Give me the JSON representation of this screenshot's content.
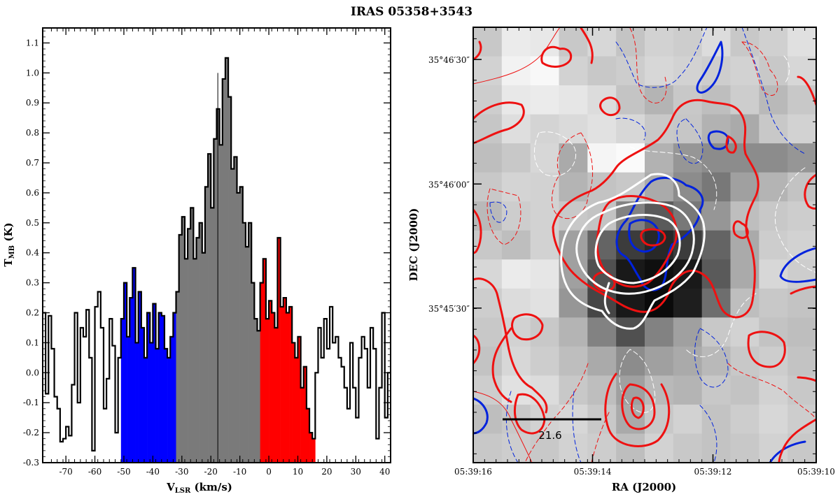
{
  "figure_title": "IRAS 05358+3543",
  "chart_data": [
    {
      "type": "line",
      "subtype": "step-spectrum",
      "xlabel_main": "V",
      "xlabel_sub": "LSR",
      "xlabel_unit": " (km/s)",
      "ylabel_main": "T",
      "ylabel_sub": "MB",
      "ylabel_unit": " (K)",
      "xlim": [
        -78,
        42
      ],
      "ylim": [
        -0.3,
        1.15
      ],
      "xticks": [
        -70,
        -60,
        -50,
        -40,
        -30,
        -20,
        -10,
        0,
        10,
        20,
        30,
        40
      ],
      "yticks": [
        -0.3,
        -0.2,
        -0.1,
        0.0,
        0.1,
        0.2,
        0.3,
        0.4,
        0.5,
        0.6,
        0.7,
        0.8,
        0.9,
        1.0,
        1.1
      ],
      "xtick_labels": [
        "-70",
        "-60",
        "-50",
        "-40",
        "-30",
        "-20",
        "-10",
        "0",
        "10",
        "20",
        "30",
        "40"
      ],
      "ytick_labels": [
        "-0.3",
        "-0.2",
        "-0.1",
        "0.0",
        "0.1",
        "0.2",
        "0.3",
        "0.4",
        "0.5",
        "0.6",
        "0.7",
        "0.8",
        "0.9",
        "1.0",
        "1.1"
      ],
      "systemic_velocity": -17.6,
      "channel_width": 1.0,
      "x": [
        -78,
        -77,
        -76,
        -75,
        -74,
        -73,
        -72,
        -71,
        -70,
        -69,
        -68,
        -67,
        -66,
        -65,
        -64,
        -63,
        -62,
        -61,
        -60,
        -59,
        -58,
        -57,
        -56,
        -55,
        -54,
        -53,
        -52,
        -51,
        -50,
        -49,
        -48,
        -47,
        -46,
        -45,
        -44,
        -43,
        -42,
        -41,
        -40,
        -39,
        -38,
        -37,
        -36,
        -35,
        -34,
        -33,
        -32,
        -31,
        -30,
        -29,
        -28,
        -27,
        -26,
        -25,
        -24,
        -23,
        -22,
        -21,
        -20,
        -19,
        -18,
        -17,
        -16,
        -15,
        -14,
        -13,
        -12,
        -11,
        -10,
        -9,
        -8,
        -7,
        -6,
        -5,
        -4,
        -3,
        -2,
        -1,
        0,
        1,
        2,
        3,
        4,
        5,
        6,
        7,
        8,
        9,
        10,
        11,
        12,
        13,
        14,
        15,
        16,
        17,
        18,
        19,
        20,
        21,
        22,
        23,
        24,
        25,
        26,
        27,
        28,
        29,
        30,
        31,
        32,
        33,
        34,
        35,
        36,
        37,
        38,
        39,
        40,
        41
      ],
      "y": [
        0.2,
        -0.07,
        0.19,
        0.08,
        -0.08,
        -0.12,
        -0.23,
        -0.22,
        -0.18,
        -0.21,
        -0.04,
        0.2,
        -0.1,
        0.15,
        0.12,
        0.21,
        0.05,
        -0.26,
        0.22,
        0.27,
        0.15,
        -0.12,
        -0.02,
        0.18,
        0.09,
        -0.2,
        0.05,
        0.18,
        0.3,
        0.12,
        0.25,
        0.35,
        0.1,
        0.27,
        0.15,
        0.05,
        0.2,
        0.1,
        0.23,
        0.08,
        0.2,
        0.19,
        0.08,
        0.05,
        0.12,
        0.2,
        0.27,
        0.46,
        0.52,
        0.38,
        0.48,
        0.55,
        0.38,
        0.45,
        0.5,
        0.4,
        0.62,
        0.73,
        0.55,
        0.78,
        0.88,
        0.76,
        0.98,
        1.05,
        0.92,
        0.68,
        0.72,
        0.6,
        0.62,
        0.5,
        0.42,
        0.5,
        0.3,
        0.18,
        0.14,
        0.3,
        0.38,
        0.18,
        0.24,
        0.2,
        0.15,
        0.45,
        0.22,
        0.25,
        0.2,
        0.22,
        0.1,
        0.05,
        0.12,
        -0.05,
        0.02,
        -0.12,
        -0.2,
        -0.22,
        0.0,
        0.15,
        0.05,
        0.18,
        0.08,
        0.22,
        0.1,
        0.12,
        0.05,
        0.02,
        -0.05,
        -0.12,
        0.1,
        -0.05,
        -0.15,
        0.05,
        0.12,
        0.08,
        -0.05,
        0.15,
        0.08,
        -0.22,
        -0.05,
        0.2,
        -0.15,
        0.0
      ],
      "series": [
        {
          "name": "blue wing",
          "range": [
            -51,
            -32
          ],
          "color": "#0000ff"
        },
        {
          "name": "core",
          "range": [
            -32,
            -3
          ],
          "color": "#7a7a7a"
        },
        {
          "name": "red wing",
          "range": [
            -3,
            16
          ],
          "color": "#ff0000"
        }
      ]
    },
    {
      "type": "heatmap",
      "subtype": "contour-map",
      "xlabel": "RA (J2000)",
      "ylabel": "DEC (J2000)",
      "xtick_labels": [
        "05:39:16",
        "05:39:14",
        "05:39:12",
        "05:39:10"
      ],
      "ytick_labels": [
        "35°46′30″",
        "35°46′00″",
        "35°45′30″"
      ],
      "scale_bar_label": "21.6",
      "grid_cols": 12,
      "grid_rows": 15,
      "gray_levels": [
        [
          200,
          235,
          232,
          200,
          215,
          196,
          210,
          205,
          220,
          200,
          208,
          224
        ],
        [
          210,
          242,
          248,
          210,
          200,
          205,
          215,
          210,
          205,
          210,
          200,
          215
        ],
        [
          205,
          232,
          235,
          230,
          220,
          196,
          180,
          200,
          190,
          205,
          185,
          200
        ],
        [
          198,
          222,
          212,
          218,
          225,
          215,
          200,
          198,
          178,
          170,
          200,
          210
        ],
        [
          190,
          200,
          215,
          170,
          245,
          250,
          178,
          150,
          140,
          140,
          140,
          150
        ],
        [
          200,
          212,
          210,
          180,
          195,
          200,
          170,
          140,
          120,
          160,
          180,
          195
        ],
        [
          185,
          205,
          210,
          200,
          195,
          130,
          90,
          120,
          150,
          190,
          200,
          205
        ],
        [
          200,
          190,
          210,
          160,
          100,
          60,
          40,
          60,
          100,
          170,
          205,
          210
        ],
        [
          215,
          235,
          230,
          160,
          80,
          25,
          15,
          25,
          90,
          170,
          215,
          205
        ],
        [
          205,
          220,
          225,
          150,
          70,
          25,
          10,
          30,
          110,
          190,
          200,
          195
        ],
        [
          200,
          210,
          200,
          180,
          130,
          80,
          130,
          160,
          200,
          210,
          195,
          190
        ],
        [
          195,
          215,
          205,
          190,
          170,
          140,
          160,
          170,
          185,
          200,
          205,
          195
        ],
        [
          205,
          225,
          220,
          200,
          190,
          160,
          185,
          180,
          200,
          195,
          210,
          200
        ],
        [
          190,
          200,
          210,
          215,
          200,
          170,
          200,
          210,
          195,
          205,
          215,
          205
        ],
        [
          200,
          205,
          200,
          210,
          205,
          190,
          210,
          200,
          195,
          200,
          210,
          200
        ]
      ],
      "contour_colors": {
        "blue": "#0022dd",
        "red": "#ee1111",
        "white": "#ffffff"
      }
    }
  ]
}
